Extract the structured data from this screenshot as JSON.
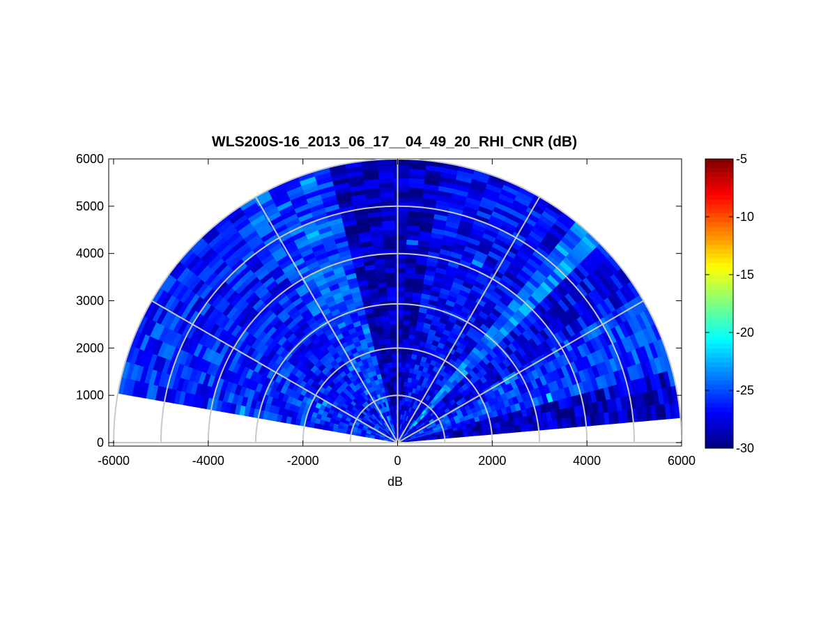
{
  "chart_data": {
    "type": "heatmap",
    "subtype": "polar-sector (RHI scan)",
    "title": "WLS200S-16_2013_06_17__04_49_20_RHI_CNR (dB)",
    "xlabel": "dB",
    "ylabel": "",
    "xlim": [
      -6000,
      6000
    ],
    "ylim": [
      0,
      6000
    ],
    "x_ticks": [
      "-6000",
      "-4000",
      "-2000",
      "0",
      "2000",
      "4000",
      "6000"
    ],
    "y_ticks": [
      "0",
      "1000",
      "2000",
      "3000",
      "4000",
      "5000",
      "6000"
    ],
    "colorbar": {
      "colormap": "jet",
      "range": [
        -30,
        -5
      ],
      "ticks": [
        "-5",
        "-10",
        "-15",
        "-20",
        "-25",
        "-30"
      ]
    },
    "polar_grid": {
      "ring_radii": [
        1000,
        2000,
        3000,
        4000,
        5000,
        6000
      ],
      "spoke_angles_deg": [
        0,
        30,
        60,
        90,
        120,
        150,
        180
      ]
    },
    "scan": {
      "elevation_range_deg": [
        5,
        170
      ],
      "max_range": 6000,
      "dominant_value_range_db": [
        -30,
        -25
      ]
    },
    "sectors": [
      {
        "elevation_deg": [
          5,
          16
        ],
        "mean_db": -28.4
      },
      {
        "elevation_deg": [
          16,
          30
        ],
        "mean_db": -25.6
      },
      {
        "elevation_deg": [
          30,
          45
        ],
        "mean_db": -27.2
      },
      {
        "elevation_deg": [
          45,
          52
        ],
        "mean_db": -23.8
      },
      {
        "elevation_deg": [
          52,
          80
        ],
        "mean_db": -27.0
      },
      {
        "elevation_deg": [
          80,
          105
        ],
        "mean_db": -28.6
      },
      {
        "elevation_deg": [
          105,
          125
        ],
        "mean_db": -25.2
      },
      {
        "elevation_deg": [
          125,
          150
        ],
        "mean_db": -26.4
      },
      {
        "elevation_deg": [
          150,
          170
        ],
        "mean_db": -26.0
      }
    ],
    "grid": true,
    "legend": "colorbar-right"
  }
}
